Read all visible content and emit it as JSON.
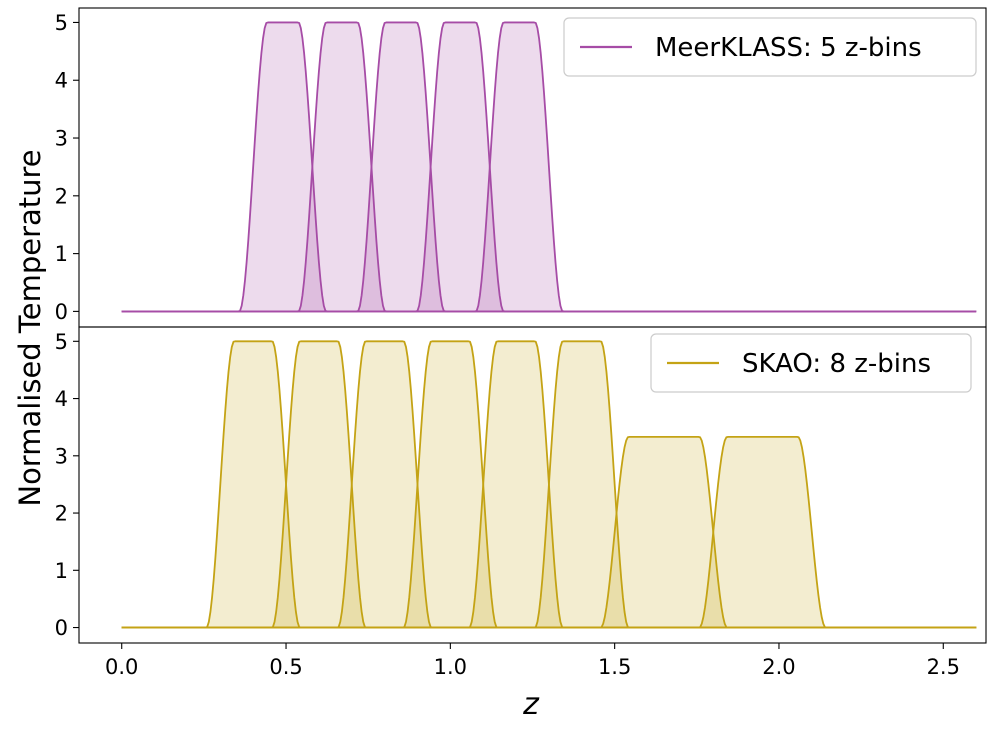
{
  "chart_data": {
    "type": "area",
    "ylabel": "Normalised Temperature",
    "xlabel": "z",
    "xlim": [
      -0.13,
      2.63
    ],
    "xticks": [
      0.0,
      0.5,
      1.0,
      1.5,
      2.0,
      2.5
    ],
    "xtick_labels": [
      "0.0",
      "0.5",
      "1.0",
      "1.5",
      "2.0",
      "2.5"
    ],
    "panels": [
      {
        "name": "MeerKLASS",
        "legend": "MeerKLASS: 5 z-bins",
        "legend_position": "top-right",
        "color": "#a64ca6",
        "fill_color": "#a64ca6",
        "ylim": [
          -0.27,
          5.25
        ],
        "yticks": [
          0,
          1,
          2,
          3,
          4,
          5
        ],
        "ytick_labels": [
          "0",
          "1",
          "2",
          "3",
          "4",
          "5"
        ],
        "x_range": [
          0.0,
          2.6
        ],
        "bins": [
          {
            "z_min": 0.4,
            "z_max": 0.58,
            "peak": 5
          },
          {
            "z_min": 0.58,
            "z_max": 0.76,
            "peak": 5
          },
          {
            "z_min": 0.76,
            "z_max": 0.94,
            "peak": 5
          },
          {
            "z_min": 0.94,
            "z_max": 1.12,
            "peak": 5
          },
          {
            "z_min": 1.12,
            "z_max": 1.3,
            "peak": 5
          }
        ]
      },
      {
        "name": "SKAO",
        "legend": "SKAO: 8 z-bins",
        "legend_position": "top-right",
        "color": "#c4a315",
        "fill_color": "#c4a315",
        "ylim": [
          -0.27,
          5.25
        ],
        "yticks": [
          0,
          1,
          2,
          3,
          4,
          5
        ],
        "ytick_labels": [
          "0",
          "1",
          "2",
          "3",
          "4",
          "5"
        ],
        "x_range": [
          0.0,
          2.6
        ],
        "bins": [
          {
            "z_min": 0.3,
            "z_max": 0.5,
            "peak": 5
          },
          {
            "z_min": 0.5,
            "z_max": 0.7,
            "peak": 5
          },
          {
            "z_min": 0.7,
            "z_max": 0.9,
            "peak": 5
          },
          {
            "z_min": 0.9,
            "z_max": 1.1,
            "peak": 5
          },
          {
            "z_min": 1.1,
            "z_max": 1.3,
            "peak": 5
          },
          {
            "z_min": 1.3,
            "z_max": 1.5,
            "peak": 5
          },
          {
            "z_min": 1.5,
            "z_max": 1.8,
            "peak": 3.33
          },
          {
            "z_min": 1.8,
            "z_max": 2.1,
            "peak": 3.33
          }
        ]
      }
    ]
  }
}
